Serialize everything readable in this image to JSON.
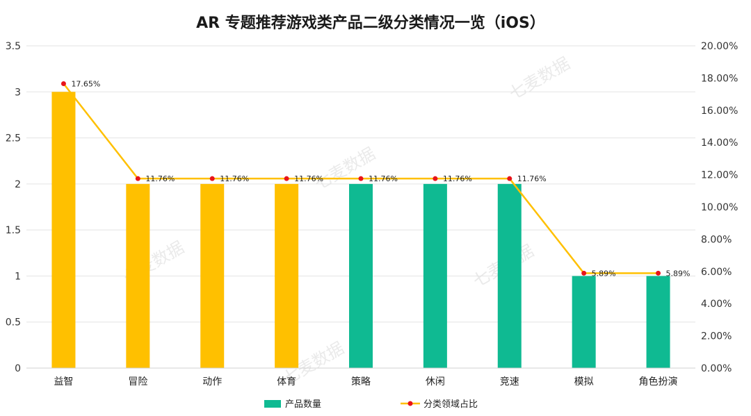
{
  "chart_data": {
    "type": "bar",
    "title": "AR 专题推荐游戏类产品二级分类情况一览（iOS）",
    "categories": [
      "益智",
      "冒险",
      "动作",
      "体育",
      "策略",
      "休闲",
      "竞速",
      "模拟",
      "角色扮演"
    ],
    "series": [
      {
        "name": "产品数量",
        "type": "bar",
        "axis": "left",
        "values": [
          3,
          2,
          2,
          2,
          2,
          2,
          2,
          1,
          1
        ],
        "colors": [
          "#FFC000",
          "#FFC000",
          "#FFC000",
          "#FFC000",
          "#0FBA92",
          "#0FBA92",
          "#0FBA92",
          "#0FBA92",
          "#0FBA92"
        ]
      },
      {
        "name": "分类领域占比",
        "type": "line",
        "axis": "right",
        "values": [
          17.65,
          11.76,
          11.76,
          11.76,
          11.76,
          11.76,
          11.76,
          5.89,
          5.89
        ],
        "labels": [
          "17.65%",
          "11.76%",
          "11.76%",
          "11.76%",
          "11.76%",
          "11.76%",
          "11.76%",
          "5.89%",
          "5.89%"
        ],
        "line_color": "#FFC000",
        "marker_color": "#E8141A"
      }
    ],
    "ylim_left": [
      0,
      3.5
    ],
    "yticks_left": [
      "0",
      "0.5",
      "1",
      "1.5",
      "2",
      "2.5",
      "3",
      "3.5"
    ],
    "ylim_right": [
      0,
      20
    ],
    "yticks_right": [
      "0.00%",
      "2.00%",
      "4.00%",
      "6.00%",
      "8.00%",
      "10.00%",
      "12.00%",
      "14.00%",
      "16.00%",
      "18.00%",
      "20.00%"
    ],
    "legend_position": "bottom",
    "legend": [
      {
        "name": "产品数量",
        "color": "#0FBA92",
        "kind": "bar"
      },
      {
        "name": "分类领域占比",
        "color": "#FFC000",
        "marker": "#E8141A",
        "kind": "line"
      }
    ],
    "grid": true,
    "watermark": "七麦数据"
  }
}
